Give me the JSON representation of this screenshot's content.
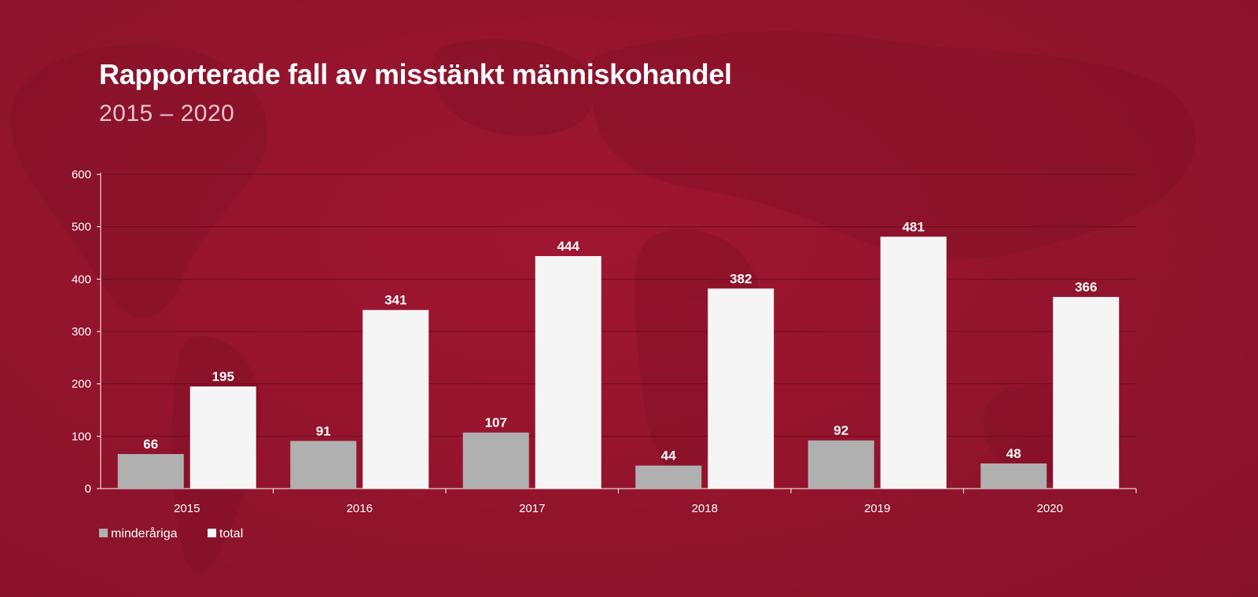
{
  "title": "Rapporterade fall av misstänkt människohandel",
  "subtitle": "2015 – 2020",
  "colors": {
    "minor": "#b0b0b0",
    "total": "#f5f5f5",
    "background": "#97142e",
    "grid": "#6a0d1e",
    "axis": "#ffffff"
  },
  "chart_data": {
    "type": "bar",
    "title": "Rapporterade fall av misstänkt människohandel",
    "subtitle": "2015 – 2020",
    "xlabel": "",
    "ylabel": "",
    "categories": [
      "2015",
      "2016",
      "2017",
      "2018",
      "2019",
      "2020"
    ],
    "series": [
      {
        "name": "minderåriga",
        "values": [
          66,
          91,
          107,
          44,
          92,
          48
        ],
        "color": "#b0b0b0"
      },
      {
        "name": "total",
        "values": [
          195,
          341,
          444,
          382,
          481,
          366
        ],
        "color": "#f5f5f5"
      }
    ],
    "ylim": [
      0,
      600
    ],
    "yticks": [
      0,
      100,
      200,
      300,
      400,
      500,
      600
    ],
    "grid": true,
    "legend_position": "bottom-left",
    "data_labels": true
  }
}
